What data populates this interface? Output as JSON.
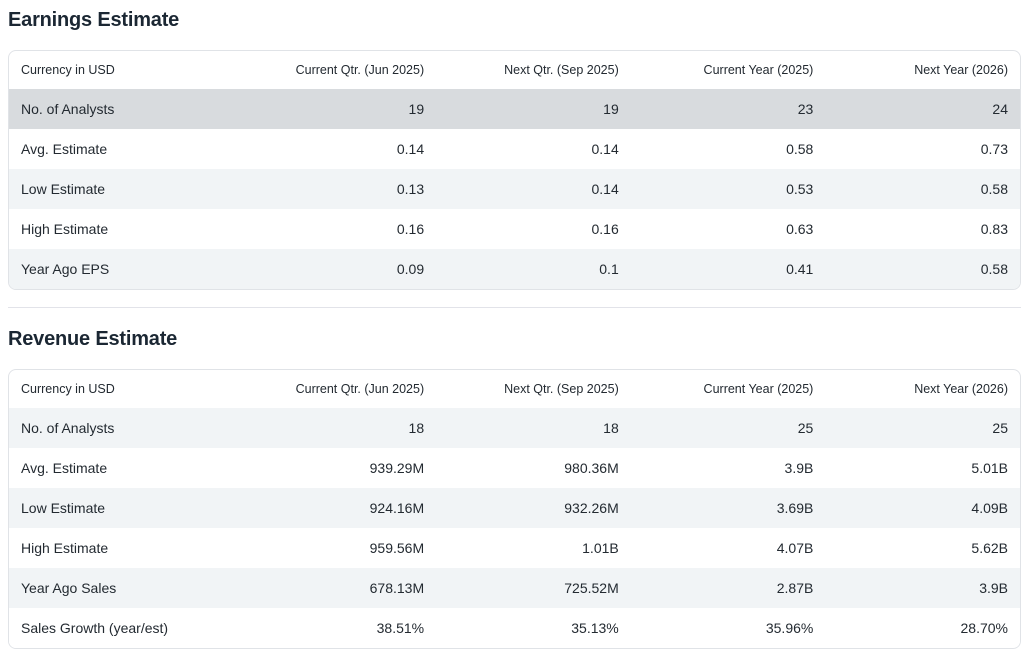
{
  "colors": {
    "row_highlight": "#d8dbde",
    "row_stripe": "#f1f4f6",
    "table_border": "#e0e3e7",
    "divider": "#e2e3e9",
    "title_text": "#1b2733",
    "body_text": "#232a31"
  },
  "sections": [
    {
      "title": "Earnings Estimate",
      "table": {
        "columns": [
          "Currency in USD",
          "Current Qtr. (Jun 2025)",
          "Next Qtr. (Sep 2025)",
          "Current Year (2025)",
          "Next Year (2026)"
        ],
        "rows": [
          {
            "label": "No. of Analysts",
            "values": [
              "19",
              "19",
              "23",
              "24"
            ],
            "highlighted": true
          },
          {
            "label": "Avg. Estimate",
            "values": [
              "0.14",
              "0.14",
              "0.58",
              "0.73"
            ]
          },
          {
            "label": "Low Estimate",
            "values": [
              "0.13",
              "0.14",
              "0.53",
              "0.58"
            ]
          },
          {
            "label": "High Estimate",
            "values": [
              "0.16",
              "0.16",
              "0.63",
              "0.83"
            ]
          },
          {
            "label": "Year Ago EPS",
            "values": [
              "0.09",
              "0.1",
              "0.41",
              "0.58"
            ]
          }
        ]
      }
    },
    {
      "title": "Revenue Estimate",
      "table": {
        "columns": [
          "Currency in USD",
          "Current Qtr. (Jun 2025)",
          "Next Qtr. (Sep 2025)",
          "Current Year (2025)",
          "Next Year (2026)"
        ],
        "rows": [
          {
            "label": "No. of Analysts",
            "values": [
              "18",
              "18",
              "25",
              "25"
            ]
          },
          {
            "label": "Avg. Estimate",
            "values": [
              "939.29M",
              "980.36M",
              "3.9B",
              "5.01B"
            ]
          },
          {
            "label": "Low Estimate",
            "values": [
              "924.16M",
              "932.26M",
              "3.69B",
              "4.09B"
            ]
          },
          {
            "label": "High Estimate",
            "values": [
              "959.56M",
              "1.01B",
              "4.07B",
              "5.62B"
            ]
          },
          {
            "label": "Year Ago Sales",
            "values": [
              "678.13M",
              "725.52M",
              "2.87B",
              "3.9B"
            ]
          },
          {
            "label": "Sales Growth (year/est)",
            "values": [
              "38.51%",
              "35.13%",
              "35.96%",
              "28.70%"
            ]
          }
        ]
      }
    }
  ]
}
